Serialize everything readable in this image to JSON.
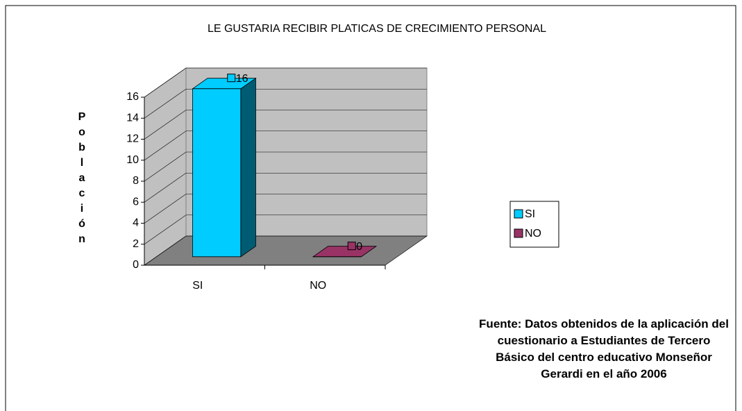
{
  "chart_data": {
    "type": "bar3d",
    "title": "LE GUSTARIA RECIBIR PLATICAS DE CRECIMIENTO PERSONAL",
    "y_label": "Población",
    "categories": [
      "SI",
      "NO"
    ],
    "values": [
      16,
      0
    ],
    "colors": [
      "#00ccff",
      "#993366"
    ],
    "ylim": [
      0,
      16
    ],
    "yticks": [
      0,
      2,
      4,
      6,
      8,
      10,
      12,
      14,
      16
    ],
    "grid": true,
    "legend": "right",
    "note": "Fuente: Datos obtenidos de la aplicación del cuestionario a Estudiantes de Tercero Básico del centro educativo Monseñor Gerardi en el año 2006"
  }
}
